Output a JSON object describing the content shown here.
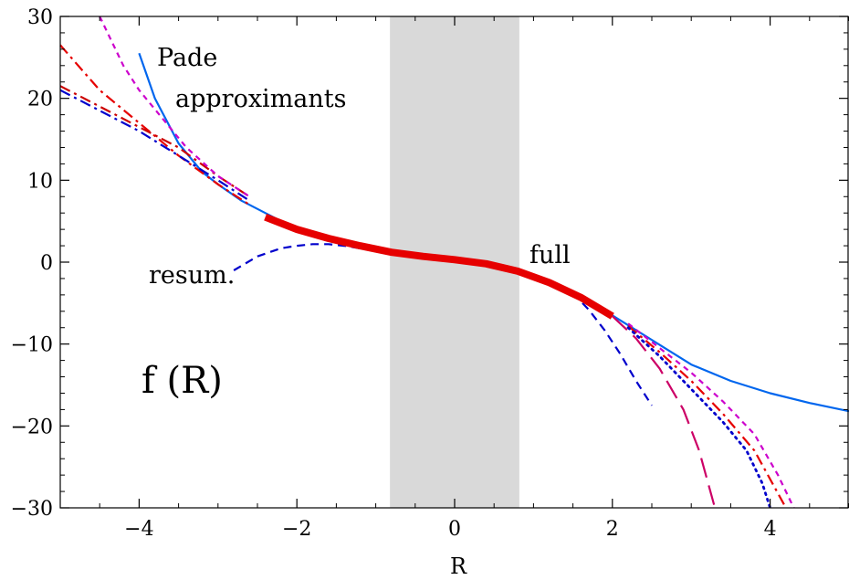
{
  "chart_data": {
    "type": "line",
    "title": "",
    "xlabel": "R",
    "ylabel": "",
    "xlim": [
      -5,
      5
    ],
    "ylim": [
      -30,
      30
    ],
    "grid": false,
    "legend": "none",
    "x_ticks": [
      -4,
      -2,
      0,
      2,
      4
    ],
    "x_tick_labels": [
      "−4",
      "−2",
      "0",
      "2",
      "4"
    ],
    "y_ticks": [
      -30,
      -20,
      -10,
      0,
      10,
      20,
      30
    ],
    "y_tick_labels": [
      "−30",
      "−20",
      "−10",
      "0",
      "10",
      "20",
      "30"
    ],
    "shaded_region": {
      "x": [
        -0.82,
        0.82
      ],
      "color": "#d9d9d9"
    },
    "annotations": {
      "pade_line1": "Pade",
      "pade_line2": "approximants",
      "resum": "resum.",
      "full": "full",
      "function": "f (R)"
    },
    "series": [
      {
        "color": "#e60000",
        "style": "solid-thick",
        "x": [
          -2.4,
          -2.0,
          -1.6,
          -1.2,
          -0.8,
          -0.4,
          0.0,
          0.4,
          0.8,
          1.2,
          1.6,
          2.0
        ],
        "y": [
          5.5,
          4.0,
          2.9,
          2.0,
          1.2,
          0.7,
          0.3,
          -0.2,
          -1.1,
          -2.5,
          -4.3,
          -6.6
        ]
      },
      {
        "color": "#0066ee",
        "style": "solid-thin",
        "x": [
          -4.0,
          -3.8,
          -3.5,
          -3.2,
          -3.0,
          -2.7,
          -2.4,
          -2.0,
          -1.0,
          0.0,
          1.0,
          1.6,
          2.0,
          2.5,
          3.0,
          3.5,
          4.0,
          4.5,
          5.0
        ],
        "y": [
          25.5,
          20.0,
          14.5,
          11.0,
          9.5,
          7.5,
          6.0,
          4.0,
          1.6,
          0.3,
          -1.6,
          -4.3,
          -6.5,
          -9.5,
          -12.5,
          -14.5,
          -16.0,
          -17.2,
          -18.2
        ]
      },
      {
        "color": "#0000cc",
        "style": "dashed",
        "x": [
          -2.8,
          -2.5,
          -2.2,
          -2.0,
          -1.8,
          -1.6,
          -1.4,
          -1.2,
          -1.0
        ],
        "y": [
          -1.0,
          0.7,
          1.7,
          2.0,
          2.2,
          2.2,
          2.0,
          1.7,
          1.4
        ]
      },
      {
        "color": "#0000cc",
        "style": "dashed",
        "x": [
          1.5,
          1.7,
          1.9,
          2.1,
          2.3,
          2.5
        ],
        "y": [
          -3.8,
          -5.8,
          -8.3,
          -11.2,
          -14.5,
          -17.5
        ]
      },
      {
        "color": "#cc0066",
        "style": "long-dashed",
        "x": [
          2.0,
          2.3,
          2.6,
          2.9,
          3.1,
          3.3
        ],
        "y": [
          -6.6,
          -9.3,
          -13.0,
          -18.0,
          -23.0,
          -30.0
        ]
      },
      {
        "color": "#e60000",
        "style": "dash-dot",
        "x": [
          -5.0,
          -4.5,
          -4.0,
          -3.5,
          -3.0,
          -2.6
        ],
        "y": [
          26.5,
          21.0,
          17.0,
          13.0,
          9.5,
          7.0
        ]
      },
      {
        "color": "#0000cc",
        "style": "dash-dot",
        "x": [
          -5.0,
          -4.5,
          -4.0,
          -3.5,
          -3.0,
          -2.6
        ],
        "y": [
          21.0,
          18.5,
          16.0,
          13.0,
          10.0,
          7.5
        ]
      },
      {
        "color": "#cc0000",
        "style": "dash-dot",
        "x": [
          -5.0,
          -4.5,
          -4.0,
          -3.5,
          -3.0,
          -2.6
        ],
        "y": [
          21.5,
          19.0,
          16.5,
          14.0,
          10.5,
          8.0
        ]
      },
      {
        "color": "#cc00cc",
        "style": "short-dashed",
        "x": [
          -4.5,
          -4.2,
          -4.0,
          -3.7,
          -3.4,
          -3.0,
          -2.6
        ],
        "y": [
          30.0,
          24.0,
          21.0,
          17.5,
          14.0,
          10.5,
          8.0
        ]
      },
      {
        "color": "#cc00cc",
        "style": "short-dashed",
        "x": [
          2.2,
          2.6,
          3.0,
          3.4,
          3.8,
          4.1,
          4.3
        ],
        "y": [
          -7.5,
          -10.5,
          -13.5,
          -17.0,
          -21.0,
          -26.0,
          -30.0
        ]
      },
      {
        "color": "#e60000",
        "style": "dash-dot",
        "x": [
          2.2,
          2.6,
          3.0,
          3.4,
          3.8,
          4.0,
          4.2
        ],
        "y": [
          -7.8,
          -11.0,
          -14.5,
          -18.5,
          -23.0,
          -26.5,
          -30.0
        ]
      },
      {
        "color": "#0000cc",
        "style": "dotted",
        "x": [
          2.2,
          2.6,
          3.0,
          3.4,
          3.7,
          3.9,
          4.0
        ],
        "y": [
          -8.0,
          -11.5,
          -15.5,
          -19.5,
          -23.0,
          -27.0,
          -30.0
        ]
      }
    ]
  }
}
